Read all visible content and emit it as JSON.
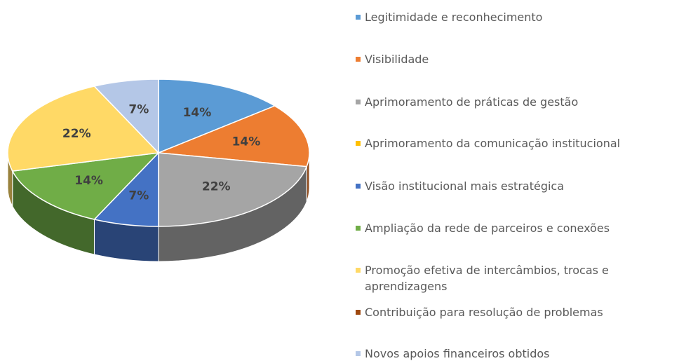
{
  "chart_data": {
    "type": "pie",
    "categories": [
      "Legitimidade e reconhecimento",
      "Visibilidade",
      "Aprimoramento de práticas de gestão",
      "Aprimoramento da comunicação institucional",
      "Visão institucional mais estratégica",
      "Ampliação da rede de parceiros e conexões",
      "Promoção efetiva de intercâmbios, trocas e aprendizagens",
      "Contribuição para resolução de problemas",
      "Novos apoios financeiros obtidos"
    ],
    "values": [
      14,
      14,
      22,
      0,
      7,
      14,
      22,
      0,
      7
    ],
    "value_labels": [
      "14%",
      "14%",
      "22%",
      null,
      "7%",
      "14%",
      "22%",
      null,
      "7%"
    ],
    "colors": [
      "#5B9BD5",
      "#ED7D31",
      "#A5A5A5",
      "#FFC000",
      "#4472C4",
      "#70AD47",
      "#FFD966",
      "#9E480E",
      "#B4C7E7"
    ],
    "legend": "right"
  }
}
